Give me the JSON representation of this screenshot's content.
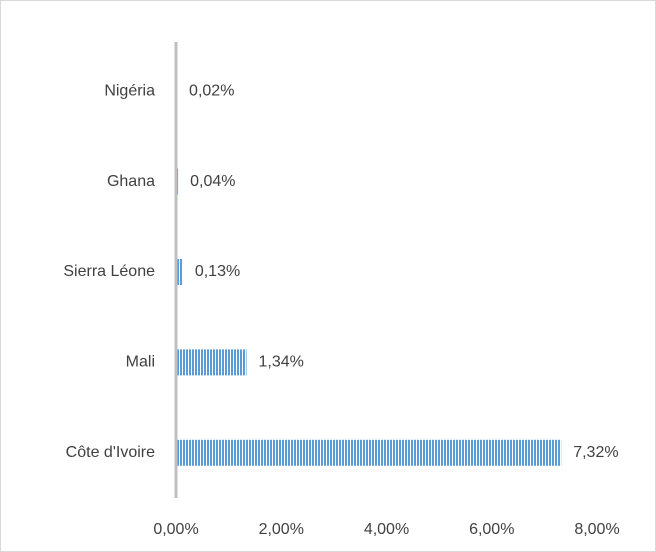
{
  "chart_data": {
    "type": "hbar",
    "categories": [
      "Nigéria",
      "Ghana",
      "Sierra Léone",
      "Mali",
      "Côte d'Ivoire"
    ],
    "values": [
      0.02,
      0.04,
      0.13,
      1.34,
      7.32
    ],
    "value_labels": [
      "0,02%",
      "0,04%",
      "0,13%",
      "1,34%",
      "7,32%"
    ],
    "color": "#5b9bd5",
    "xlim": [
      0,
      8
    ],
    "xticks": [
      {
        "value": 0,
        "label": "0,00%"
      },
      {
        "value": 2,
        "label": "2,00%"
      },
      {
        "value": 4,
        "label": "4,00%"
      },
      {
        "value": 6,
        "label": "6,00%"
      },
      {
        "value": 8,
        "label": "8,00%"
      }
    ]
  }
}
